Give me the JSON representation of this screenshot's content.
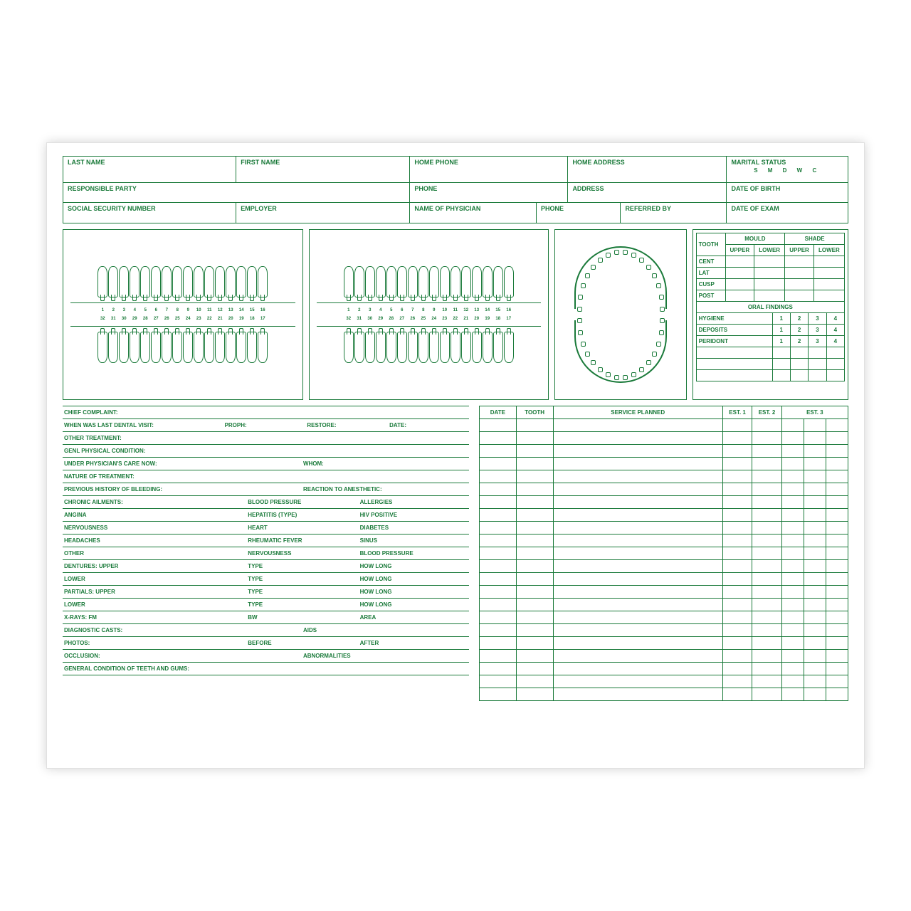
{
  "colors": {
    "ink": "#1a7a3a",
    "bg": "#ffffff"
  },
  "header": {
    "r1": {
      "lastName": "LAST NAME",
      "firstName": "FIRST NAME",
      "homePhone": "HOME PHONE",
      "homeAddress": "HOME ADDRESS",
      "maritalStatus": "MARITAL STATUS",
      "msOptions": "S M D W C"
    },
    "r2": {
      "responsible": "RESPONSIBLE PARTY",
      "phone": "PHONE",
      "address": "ADDRESS",
      "dob": "DATE OF BIRTH"
    },
    "r3": {
      "ssn": "SOCIAL SECURITY NUMBER",
      "employer": "EMPLOYER",
      "physician": "NAME OF PHYSICIAN",
      "phone": "PHONE",
      "referred": "REFERRED BY",
      "exam": "DATE OF EXAM"
    }
  },
  "toothTable": {
    "title1": "MOULD",
    "title2": "SHADE",
    "tooth": "TOOTH",
    "upper": "UPPER",
    "lower": "LOWER",
    "rows": [
      "CENT",
      "LAT",
      "CUSP",
      "POST"
    ]
  },
  "oralFindings": {
    "title": "ORAL FINDINGS",
    "rows": [
      "HYGIENE",
      "DEPOSITS",
      "PERIDONT"
    ],
    "nums": [
      "1",
      "2",
      "3",
      "4"
    ]
  },
  "history": [
    {
      "cols": [
        "CHIEF COMPLAINT:"
      ]
    },
    {
      "cols": [
        "WHEN WAS LAST DENTAL VISIT:",
        "PROPH:",
        "RESTORE:",
        "DATE:"
      ],
      "layout": "cols3b"
    },
    {
      "cols": [
        "OTHER TREATMENT:"
      ]
    },
    {
      "cols": [
        "GENL PHYSICAL CONDITION:"
      ]
    },
    {
      "cols": [
        "UNDER PHYSICIAN'S CARE NOW:",
        "WHOM:"
      ],
      "layout": "cols2"
    },
    {
      "cols": [
        "NATURE OF TREATMENT:"
      ]
    },
    {
      "cols": [
        "PREVIOUS HISTORY OF BLEEDING:",
        "REACTION TO ANESTHETIC:"
      ],
      "layout": "cols2"
    },
    {
      "cols": [
        "CHRONIC AILMENTS:",
        "BLOOD PRESSURE",
        "ALLERGIES"
      ],
      "layout": "cols3"
    },
    {
      "cols": [
        "ANGINA",
        "HEPATITIS (TYPE)",
        "HIV POSITIVE"
      ],
      "layout": "cols3"
    },
    {
      "cols": [
        "NERVOUSNESS",
        "HEART",
        "DIABETES"
      ],
      "layout": "cols3"
    },
    {
      "cols": [
        "HEADACHES",
        "RHEUMATIC FEVER",
        "SINUS"
      ],
      "layout": "cols3"
    },
    {
      "cols": [
        "OTHER",
        "NERVOUSNESS",
        "BLOOD PRESSURE"
      ],
      "layout": "cols3"
    },
    {
      "cols": [
        "DENTURES:   UPPER",
        "TYPE",
        "HOW LONG"
      ],
      "layout": "cols3"
    },
    {
      "cols": [
        "LOWER",
        "TYPE",
        "HOW LONG"
      ],
      "layout": "cols3"
    },
    {
      "cols": [
        "PARTIALS:   UPPER",
        "TYPE",
        "HOW LONG"
      ],
      "layout": "cols3"
    },
    {
      "cols": [
        "LOWER",
        "TYPE",
        "HOW LONG"
      ],
      "layout": "cols3"
    },
    {
      "cols": [
        "X-RAYS:   FM",
        "BW",
        "AREA"
      ],
      "layout": "cols3"
    },
    {
      "cols": [
        "DIAGNOSTIC CASTS:",
        "AIDS"
      ],
      "layout": "cols2"
    },
    {
      "cols": [
        "PHOTOS:",
        "BEFORE",
        "AFTER"
      ],
      "layout": "cols3"
    },
    {
      "cols": [
        "OCCLUSION:",
        "ABNORMALITIES"
      ],
      "layout": "cols2"
    },
    {
      "cols": [
        "GENERAL CONDITION OF TEETH AND GUMS:"
      ]
    }
  ],
  "service": {
    "headers": [
      "DATE",
      "TOOTH",
      "SERVICE PLANNED",
      "EST. 1",
      "EST. 2",
      "EST. 3"
    ],
    "blankRows": 22
  },
  "teethCount": 16
}
